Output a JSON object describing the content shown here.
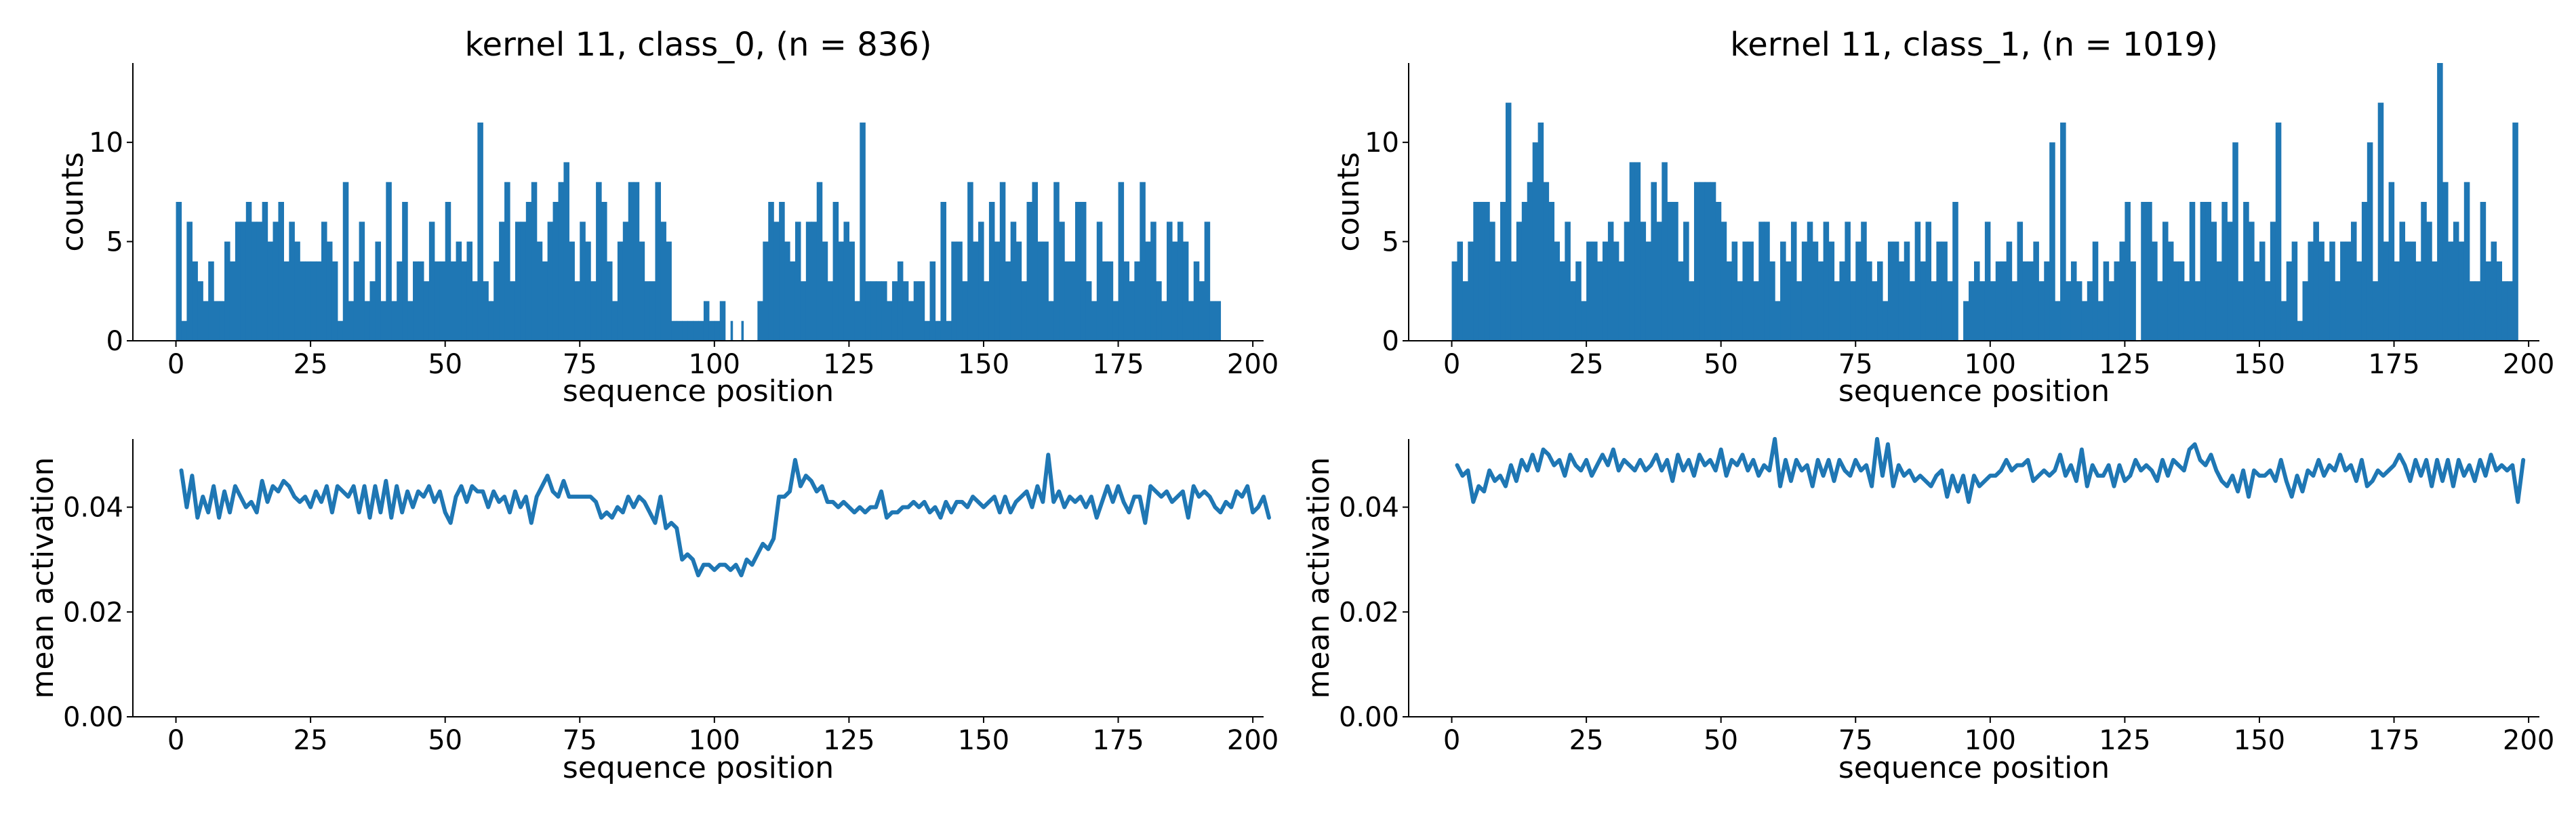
{
  "figure": {
    "background": "#ffffff",
    "series_color": "#1f77b4"
  },
  "chart_data": [
    {
      "type": "bar",
      "title": "kernel 11, class_0, (n = 836)",
      "xlabel": "sequence position",
      "ylabel": "counts",
      "xlim": [
        -8,
        202
      ],
      "ylim": [
        0,
        14
      ],
      "xticks": [
        "0",
        "25",
        "50",
        "75",
        "100",
        "125",
        "150",
        "175",
        "200"
      ],
      "yticks": [
        "0",
        "5",
        "10"
      ],
      "bin_width": 1,
      "x_start": 0,
      "values": [
        7,
        1,
        6,
        4,
        3,
        2,
        4,
        2,
        2,
        5,
        4,
        6,
        6,
        7,
        6,
        6,
        7,
        5,
        6,
        7,
        4,
        6,
        5,
        4,
        4,
        4,
        4,
        6,
        5,
        4,
        1,
        8,
        2,
        4,
        6,
        2,
        3,
        5,
        2,
        8,
        2,
        4,
        7,
        2,
        4,
        4,
        3,
        6,
        4,
        4,
        7,
        4,
        5,
        4,
        5,
        3,
        11,
        3,
        2,
        4,
        6,
        8,
        3,
        6,
        6,
        7,
        8,
        5,
        4,
        6,
        7,
        8,
        9,
        5,
        3,
        6,
        5,
        3,
        8,
        7,
        4,
        2,
        5,
        6,
        8,
        8,
        5,
        3,
        3,
        8,
        6,
        5,
        1,
        1,
        1,
        1,
        1,
        1,
        2,
        1,
        1,
        2,
        0,
        0,
        0,
        0,
        0,
        0,
        2,
        5,
        7,
        6,
        7,
        5,
        4,
        6,
        3,
        6,
        6,
        8,
        5,
        3,
        7,
        5,
        6,
        5,
        2,
        11,
        3,
        3,
        3,
        3,
        2,
        3,
        4,
        3,
        2,
        3,
        3,
        1,
        4,
        1,
        7,
        1,
        5,
        5,
        3,
        8,
        5,
        6,
        3,
        7,
        5,
        8,
        4,
        6,
        5,
        3,
        7,
        8,
        5,
        5,
        2,
        8,
        6,
        4,
        4,
        7,
        7,
        3,
        2,
        6,
        4,
        4,
        2,
        8,
        4,
        3,
        4,
        8,
        5,
        6,
        3,
        2,
        6,
        5,
        6,
        5,
        2,
        4,
        3,
        6,
        2,
        2
      ],
      "gap_markers": [
        {
          "x": 101,
          "value": 1
        },
        {
          "x": 103,
          "value": 1
        },
        {
          "x": 105,
          "value": 1
        }
      ]
    },
    {
      "type": "line",
      "title": "",
      "xlabel": "sequence position",
      "ylabel": "mean activation",
      "xlim": [
        -8,
        202
      ],
      "ylim": [
        0,
        0.053
      ],
      "xticks": [
        "0",
        "25",
        "50",
        "75",
        "100",
        "125",
        "150",
        "175",
        "200"
      ],
      "yticks": [
        "0.00",
        "0.02",
        "0.04"
      ],
      "x_start": 1,
      "values": [
        0.047,
        0.04,
        0.046,
        0.038,
        0.042,
        0.039,
        0.044,
        0.038,
        0.043,
        0.039,
        0.044,
        0.042,
        0.04,
        0.041,
        0.039,
        0.045,
        0.041,
        0.044,
        0.043,
        0.045,
        0.044,
        0.042,
        0.041,
        0.042,
        0.04,
        0.043,
        0.041,
        0.044,
        0.039,
        0.044,
        0.043,
        0.042,
        0.044,
        0.039,
        0.044,
        0.038,
        0.044,
        0.039,
        0.045,
        0.038,
        0.044,
        0.039,
        0.043,
        0.04,
        0.043,
        0.042,
        0.044,
        0.041,
        0.043,
        0.039,
        0.037,
        0.042,
        0.044,
        0.041,
        0.044,
        0.043,
        0.043,
        0.04,
        0.043,
        0.041,
        0.042,
        0.039,
        0.043,
        0.04,
        0.042,
        0.037,
        0.042,
        0.044,
        0.046,
        0.043,
        0.042,
        0.045,
        0.042,
        0.042,
        0.042,
        0.042,
        0.042,
        0.041,
        0.038,
        0.039,
        0.038,
        0.04,
        0.039,
        0.042,
        0.04,
        0.042,
        0.041,
        0.039,
        0.037,
        0.042,
        0.036,
        0.037,
        0.036,
        0.03,
        0.031,
        0.03,
        0.027,
        0.029,
        0.029,
        0.028,
        0.029,
        0.029,
        0.028,
        0.029,
        0.027,
        0.03,
        0.029,
        0.031,
        0.033,
        0.032,
        0.034,
        0.042,
        0.042,
        0.043,
        0.049,
        0.044,
        0.046,
        0.045,
        0.043,
        0.044,
        0.041,
        0.041,
        0.04,
        0.041,
        0.04,
        0.039,
        0.04,
        0.039,
        0.04,
        0.04,
        0.043,
        0.038,
        0.039,
        0.039,
        0.04,
        0.04,
        0.041,
        0.04,
        0.041,
        0.039,
        0.04,
        0.038,
        0.041,
        0.039,
        0.041,
        0.041,
        0.04,
        0.042,
        0.041,
        0.04,
        0.041,
        0.042,
        0.039,
        0.042,
        0.039,
        0.041,
        0.042,
        0.043,
        0.04,
        0.044,
        0.041,
        0.05,
        0.041,
        0.043,
        0.04,
        0.042,
        0.041,
        0.042,
        0.04,
        0.042,
        0.038,
        0.041,
        0.044,
        0.041,
        0.044,
        0.041,
        0.039,
        0.042,
        0.042,
        0.037,
        0.044,
        0.043,
        0.042,
        0.043,
        0.041,
        0.042,
        0.043,
        0.038,
        0.044,
        0.042,
        0.043,
        0.042,
        0.04,
        0.039,
        0.041,
        0.04,
        0.043,
        0.042,
        0.044,
        0.039,
        0.04,
        0.042,
        0.038
      ]
    },
    {
      "type": "bar",
      "title": "kernel 11, class_1, (n = 1019)",
      "xlabel": "sequence position",
      "ylabel": "counts",
      "xlim": [
        -8,
        202
      ],
      "ylim": [
        0,
        14
      ],
      "xticks": [
        "0",
        "25",
        "50",
        "75",
        "100",
        "125",
        "150",
        "175",
        "200"
      ],
      "yticks": [
        "0",
        "5",
        "10"
      ],
      "bin_width": 1,
      "x_start": 0,
      "values": [
        4,
        5,
        3,
        5,
        7,
        7,
        7,
        6,
        4,
        7,
        12,
        4,
        6,
        7,
        8,
        10,
        11,
        8,
        7,
        5,
        4,
        6,
        3,
        4,
        2,
        5,
        5,
        4,
        5,
        6,
        5,
        4,
        6,
        9,
        9,
        6,
        5,
        8,
        6,
        9,
        7,
        7,
        4,
        6,
        3,
        8,
        8,
        8,
        8,
        7,
        6,
        4,
        5,
        3,
        5,
        5,
        3,
        6,
        6,
        4,
        2,
        5,
        4,
        6,
        3,
        5,
        6,
        5,
        4,
        6,
        5,
        3,
        4,
        6,
        3,
        5,
        6,
        4,
        3,
        4,
        2,
        5,
        5,
        4,
        5,
        3,
        6,
        4,
        6,
        3,
        5,
        5,
        3,
        7,
        0,
        2,
        3,
        4,
        3,
        6,
        3,
        4,
        4,
        5,
        3,
        6,
        4,
        4,
        5,
        3,
        4,
        10,
        2,
        11,
        3,
        4,
        3,
        2,
        3,
        5,
        2,
        4,
        3,
        4,
        5,
        7,
        4,
        0,
        7,
        7,
        5,
        3,
        6,
        5,
        4,
        4,
        3,
        7,
        3,
        7,
        7,
        6,
        4,
        7,
        6,
        10,
        3,
        7,
        6,
        4,
        5,
        3,
        6,
        11,
        2,
        4,
        5,
        1,
        3,
        5,
        6,
        5,
        4,
        5,
        3,
        5,
        5,
        6,
        4,
        7,
        10,
        3,
        12,
        5,
        8,
        4,
        6,
        5,
        5,
        4,
        7,
        6,
        4,
        14,
        8,
        5,
        6,
        5,
        8,
        3,
        3,
        7,
        4,
        5,
        4,
        3,
        3,
        11
      ]
    },
    {
      "type": "line",
      "title": "",
      "xlabel": "sequence position",
      "ylabel": "mean activation",
      "xlim": [
        -8,
        202
      ],
      "ylim": [
        0,
        0.053
      ],
      "xticks": [
        "0",
        "25",
        "50",
        "75",
        "100",
        "125",
        "150",
        "175",
        "200"
      ],
      "yticks": [
        "0.00",
        "0.02",
        "0.04"
      ],
      "x_start": 1,
      "values": [
        0.048,
        0.046,
        0.047,
        0.041,
        0.044,
        0.043,
        0.047,
        0.045,
        0.046,
        0.044,
        0.048,
        0.045,
        0.049,
        0.047,
        0.05,
        0.047,
        0.051,
        0.05,
        0.048,
        0.049,
        0.046,
        0.05,
        0.048,
        0.047,
        0.049,
        0.046,
        0.048,
        0.05,
        0.048,
        0.051,
        0.047,
        0.049,
        0.048,
        0.047,
        0.049,
        0.047,
        0.048,
        0.05,
        0.047,
        0.049,
        0.045,
        0.05,
        0.047,
        0.049,
        0.046,
        0.05,
        0.048,
        0.049,
        0.047,
        0.051,
        0.046,
        0.049,
        0.048,
        0.05,
        0.047,
        0.049,
        0.046,
        0.048,
        0.047,
        0.053,
        0.044,
        0.049,
        0.045,
        0.049,
        0.047,
        0.048,
        0.044,
        0.049,
        0.046,
        0.049,
        0.045,
        0.049,
        0.047,
        0.046,
        0.049,
        0.047,
        0.048,
        0.044,
        0.053,
        0.046,
        0.052,
        0.044,
        0.048,
        0.046,
        0.047,
        0.045,
        0.046,
        0.045,
        0.044,
        0.046,
        0.047,
        0.042,
        0.046,
        0.043,
        0.046,
        0.041,
        0.046,
        0.044,
        0.045,
        0.046,
        0.046,
        0.047,
        0.049,
        0.047,
        0.048,
        0.048,
        0.049,
        0.045,
        0.046,
        0.047,
        0.046,
        0.047,
        0.05,
        0.046,
        0.048,
        0.045,
        0.051,
        0.044,
        0.048,
        0.046,
        0.046,
        0.048,
        0.044,
        0.048,
        0.045,
        0.046,
        0.049,
        0.047,
        0.048,
        0.047,
        0.045,
        0.049,
        0.046,
        0.049,
        0.048,
        0.047,
        0.051,
        0.052,
        0.049,
        0.048,
        0.05,
        0.047,
        0.045,
        0.044,
        0.046,
        0.043,
        0.047,
        0.042,
        0.047,
        0.046,
        0.046,
        0.047,
        0.045,
        0.049,
        0.045,
        0.042,
        0.046,
        0.043,
        0.047,
        0.046,
        0.049,
        0.046,
        0.048,
        0.047,
        0.05,
        0.047,
        0.048,
        0.045,
        0.049,
        0.044,
        0.045,
        0.047,
        0.046,
        0.047,
        0.048,
        0.05,
        0.048,
        0.045,
        0.049,
        0.046,
        0.049,
        0.044,
        0.049,
        0.045,
        0.049,
        0.044,
        0.049,
        0.046,
        0.048,
        0.045,
        0.049,
        0.046,
        0.05,
        0.047,
        0.048,
        0.047,
        0.048,
        0.041,
        0.049
      ]
    }
  ]
}
